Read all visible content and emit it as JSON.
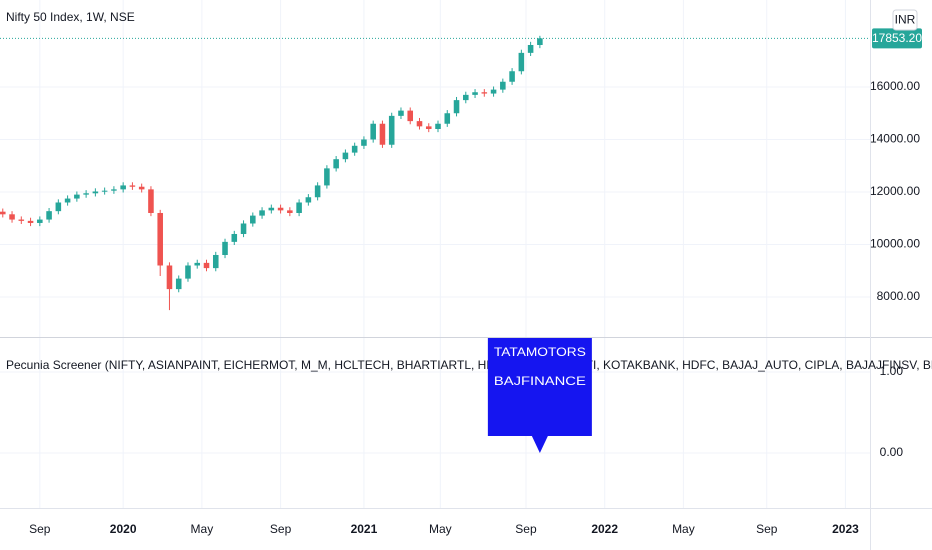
{
  "chart_data": {
    "type": "candlestick",
    "title": "Nifty 50 Index, 1W, NSE",
    "currency": "INR",
    "up_color": "#26a69a",
    "down_color": "#ef5350",
    "grid": true,
    "x": [
      -8,
      -6,
      -4,
      -2,
      0,
      2,
      4,
      6,
      8,
      10,
      12,
      14,
      16,
      18,
      20,
      22,
      24,
      26,
      28,
      30,
      32,
      34,
      36,
      38,
      40,
      42,
      44,
      46,
      48,
      50,
      52,
      54,
      56,
      58,
      60,
      62,
      64,
      66,
      68,
      70,
      72,
      74,
      76,
      78,
      80,
      82,
      84,
      86,
      88,
      90,
      92,
      94,
      96,
      98,
      100,
      102,
      104,
      106,
      108
    ],
    "open": [
      11250,
      11150,
      10950,
      10900,
      10820,
      10950,
      11270,
      11600,
      11750,
      11900,
      11950,
      12020,
      12050,
      12100,
      12250,
      12200,
      12100,
      11200,
      9200,
      8300,
      8700,
      9200,
      9300,
      9100,
      9600,
      10100,
      10400,
      10800,
      11100,
      11300,
      11400,
      11300,
      11200,
      11600,
      11800,
      12250,
      12900,
      13250,
      13500,
      13760,
      14000,
      14600,
      13800,
      14900,
      15100,
      14700,
      14500,
      14400,
      14600,
      15000,
      15500,
      15700,
      15800,
      15750,
      15900,
      16200,
      16600,
      17300,
      17600
    ],
    "high": [
      11370,
      11270,
      11070,
      11020,
      11070,
      11390,
      11720,
      11870,
      12020,
      12070,
      12140,
      12170,
      12220,
      12370,
      12370,
      12320,
      12220,
      11320,
      9320,
      8820,
      9320,
      9420,
      9420,
      9720,
      10220,
      10520,
      10920,
      11220,
      11420,
      11520,
      11520,
      11420,
      11720,
      11920,
      12370,
      13020,
      13370,
      13620,
      13880,
      14120,
      14720,
      14720,
      15020,
      15220,
      15220,
      14820,
      14620,
      14720,
      15120,
      15620,
      15820,
      15920,
      15920,
      16020,
      16320,
      16720,
      17420,
      17720,
      17950
    ],
    "low": [
      11030,
      10830,
      10780,
      10700,
      10700,
      10830,
      11150,
      11480,
      11630,
      11780,
      11830,
      11900,
      11930,
      11980,
      12080,
      11980,
      11080,
      8800,
      7500,
      8180,
      8580,
      9080,
      8980,
      8980,
      9480,
      9980,
      10280,
      10680,
      10980,
      11180,
      11180,
      11080,
      11080,
      11480,
      11680,
      12130,
      12780,
      13130,
      13380,
      13640,
      13880,
      13680,
      13680,
      14780,
      14580,
      14380,
      14280,
      14280,
      14480,
      14880,
      15380,
      15580,
      15630,
      15630,
      15780,
      16080,
      16480,
      17180,
      17480
    ],
    "close": [
      11150,
      10950,
      10900,
      10820,
      10950,
      11270,
      11600,
      11750,
      11900,
      11950,
      12020,
      12050,
      12100,
      12250,
      12200,
      12100,
      11200,
      9200,
      8300,
      8700,
      9200,
      9300,
      9100,
      9600,
      10100,
      10400,
      10800,
      11100,
      11300,
      11400,
      11300,
      11200,
      11600,
      11800,
      12250,
      12900,
      13250,
      13500,
      13760,
      14000,
      14600,
      13800,
      14900,
      15100,
      14700,
      14500,
      14400,
      14600,
      15000,
      15500,
      15700,
      15800,
      15750,
      15900,
      16200,
      16600,
      17300,
      17600,
      17853.2
    ],
    "xlim": [
      -8.6,
      179.3
    ],
    "xticks": [
      {
        "value": 0,
        "label": "Sep"
      },
      {
        "value": 18,
        "label": "2020"
      },
      {
        "value": 35,
        "label": "May"
      },
      {
        "value": 52,
        "label": "Sep"
      },
      {
        "value": 70,
        "label": "2021"
      },
      {
        "value": 86.5,
        "label": "May"
      },
      {
        "value": 105,
        "label": "Sep"
      },
      {
        "value": 122,
        "label": "2022"
      },
      {
        "value": 139,
        "label": "May"
      },
      {
        "value": 157,
        "label": "Sep"
      },
      {
        "value": 174,
        "label": "2023"
      }
    ],
    "ylim": [
      6552,
      19314
    ],
    "yticks": [
      {
        "value": 8000,
        "label": "8000.00"
      },
      {
        "value": 10000,
        "label": "10000.00"
      },
      {
        "value": 12000,
        "label": "12000.00"
      },
      {
        "value": 14000,
        "label": "14000.00"
      },
      {
        "value": 16000,
        "label": "16000.00"
      }
    ],
    "last_price": {
      "value": 17853.2,
      "label": "17853.20"
    },
    "indicator": {
      "title": "Pecunia Screener (NIFTY, ASIANPAINT, EICHERMOT, M_M, HCLTECH, BHARTIARTL, HDFCBANK, MARUTI, KOTAKBANK, HDFC, BAJAJ_AUTO, CIPLA, BAJAJFINSV, BRITANNIA, K",
      "ylim": [
        -0.642,
        1.395
      ],
      "yticks": [
        {
          "value": 1,
          "label": "1.00"
        },
        {
          "value": 0,
          "label": "0.00"
        }
      ],
      "label": {
        "x": 108,
        "y": 0,
        "color": "#1515f0",
        "lines": [
          "TATAMOTORS",
          "BAJFINANCE"
        ]
      }
    }
  }
}
